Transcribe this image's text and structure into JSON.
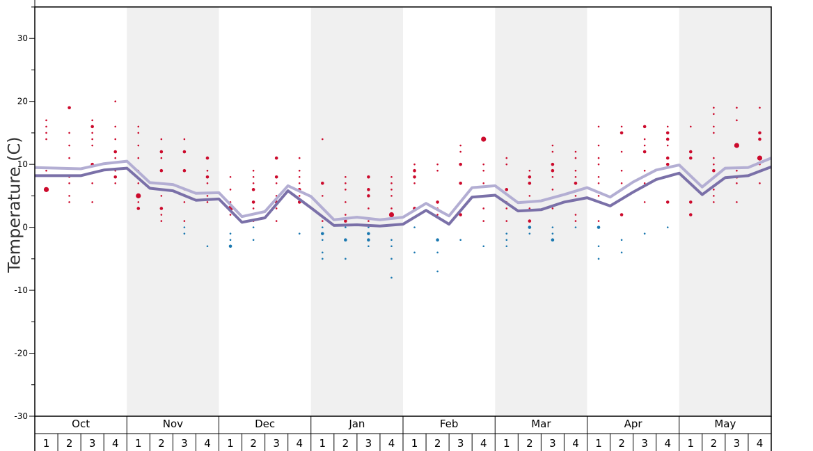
{
  "chart_data": {
    "type": "line",
    "ylabel": "Temperature (C)",
    "ylim": [
      -30,
      35
    ],
    "yticks": [
      30,
      20,
      10,
      0,
      -10,
      -20,
      -30
    ],
    "months": [
      "Oct",
      "Nov",
      "Dec",
      "Jan",
      "Feb",
      "Mar",
      "Apr",
      "May"
    ],
    "weeks": [
      "1",
      "2",
      "3",
      "4"
    ],
    "shaded_months": [
      "Nov",
      "Jan",
      "Mar",
      "May"
    ],
    "x_count": 32,
    "colors": {
      "upper_line": "#b3aed3",
      "lower_line": "#7a70a8",
      "warm_points": "#cc0a2c",
      "cold_points": "#1a78b0",
      "shade": "#f0f0f0"
    },
    "series": [
      {
        "values": [
          9.5,
          9.4,
          9.3,
          10.1,
          10.5,
          7.1,
          6.8,
          5.4,
          5.5,
          1.7,
          2.5,
          6.6,
          4.9,
          1.2,
          1.6,
          1.2,
          1.6,
          3.8,
          1.8,
          6.3,
          6.6,
          3.9,
          4.2,
          5.2,
          6.3,
          4.8,
          7.2,
          9.1,
          9.9,
          6.4,
          9.4,
          9.5,
          11.0
        ]
      },
      {
        "values": [
          8.2,
          8.2,
          8.2,
          9.1,
          9.4,
          6.2,
          5.8,
          4.3,
          4.5,
          0.8,
          1.5,
          5.8,
          3.1,
          0.3,
          0.4,
          0.2,
          0.5,
          2.7,
          0.5,
          4.8,
          5.1,
          2.6,
          2.8,
          4.0,
          4.7,
          3.4,
          5.6,
          7.6,
          8.6,
          5.2,
          7.9,
          8.2,
          9.6
        ]
      }
    ],
    "points": [
      [
        0,
        [
          [
            6,
            3
          ],
          [
            9,
            1
          ],
          [
            14,
            1
          ],
          [
            15,
            1
          ],
          [
            16,
            1
          ],
          [
            17,
            1
          ]
        ]
      ],
      [
        1,
        [
          [
            4,
            1
          ],
          [
            5,
            1
          ],
          [
            7,
            1
          ],
          [
            8,
            1
          ],
          [
            11,
            1
          ],
          [
            13,
            1
          ],
          [
            15,
            1
          ],
          [
            19,
            2
          ]
        ]
      ],
      [
        2,
        [
          [
            4,
            1
          ],
          [
            7,
            1
          ],
          [
            10,
            2
          ],
          [
            13,
            1
          ],
          [
            14,
            1
          ],
          [
            15,
            1
          ],
          [
            16,
            2
          ],
          [
            17,
            1
          ]
        ]
      ],
      [
        3,
        [
          [
            7,
            1
          ],
          [
            8,
            2
          ],
          [
            9,
            1
          ],
          [
            11,
            1
          ],
          [
            12,
            2
          ],
          [
            14,
            1
          ],
          [
            16,
            1
          ],
          [
            20,
            1
          ]
        ]
      ],
      [
        4,
        [
          [
            3,
            2
          ],
          [
            4,
            1
          ],
          [
            5,
            3
          ],
          [
            7,
            1
          ],
          [
            9,
            1
          ],
          [
            11,
            1
          ],
          [
            13,
            1
          ],
          [
            15,
            1
          ],
          [
            16,
            1
          ]
        ]
      ],
      [
        5,
        [
          [
            1,
            1
          ],
          [
            2,
            1
          ],
          [
            3,
            2
          ],
          [
            5,
            1
          ],
          [
            7,
            1
          ],
          [
            9,
            2
          ],
          [
            11,
            1
          ],
          [
            12,
            2
          ],
          [
            14,
            1
          ]
        ]
      ],
      [
        6,
        [
          [
            -1,
            1
          ],
          [
            0,
            1
          ],
          [
            1,
            1
          ],
          [
            4,
            1
          ],
          [
            6,
            1
          ],
          [
            9,
            2
          ],
          [
            12,
            2
          ],
          [
            14,
            1
          ]
        ]
      ],
      [
        7,
        [
          [
            -3,
            1
          ],
          [
            4,
            1
          ],
          [
            5,
            1
          ],
          [
            7,
            1
          ],
          [
            8,
            2
          ],
          [
            9,
            1
          ],
          [
            11,
            2
          ]
        ]
      ],
      [
        8,
        [
          [
            -3,
            2
          ],
          [
            -2,
            1
          ],
          [
            -1,
            1
          ],
          [
            2,
            1
          ],
          [
            3,
            3
          ],
          [
            4,
            1
          ],
          [
            6,
            1
          ],
          [
            8,
            1
          ]
        ]
      ],
      [
        9,
        [
          [
            -2,
            1
          ],
          [
            0,
            1
          ],
          [
            1,
            1
          ],
          [
            3,
            1
          ],
          [
            4,
            2
          ],
          [
            6,
            2
          ],
          [
            7,
            1
          ],
          [
            8,
            1
          ],
          [
            9,
            1
          ]
        ]
      ],
      [
        10,
        [
          [
            1,
            1
          ],
          [
            3,
            1
          ],
          [
            4,
            2
          ],
          [
            5,
            1
          ],
          [
            7,
            1
          ],
          [
            8,
            2
          ],
          [
            11,
            2
          ]
        ]
      ],
      [
        11,
        [
          [
            -1,
            1
          ],
          [
            4,
            2
          ],
          [
            5,
            1
          ],
          [
            6,
            2
          ],
          [
            7,
            1
          ],
          [
            8,
            1
          ],
          [
            9,
            1
          ],
          [
            11,
            1
          ]
        ]
      ],
      [
        12,
        [
          [
            -5,
            1
          ],
          [
            -4,
            1
          ],
          [
            -2,
            1
          ],
          [
            -1,
            2
          ],
          [
            0,
            1
          ],
          [
            1,
            1
          ],
          [
            3,
            1
          ],
          [
            5,
            1
          ],
          [
            7,
            2
          ],
          [
            14,
            1
          ]
        ]
      ],
      [
        13,
        [
          [
            -5,
            1
          ],
          [
            -2,
            2
          ],
          [
            0,
            1
          ],
          [
            1,
            2
          ],
          [
            2,
            1
          ],
          [
            4,
            1
          ],
          [
            6,
            1
          ],
          [
            7,
            1
          ],
          [
            8,
            1
          ]
        ]
      ],
      [
        14,
        [
          [
            -3,
            1
          ],
          [
            -2,
            2
          ],
          [
            -1,
            2
          ],
          [
            0,
            1
          ],
          [
            1,
            1
          ],
          [
            3,
            1
          ],
          [
            5,
            2
          ],
          [
            6,
            2
          ],
          [
            8,
            2
          ]
        ]
      ],
      [
        15,
        [
          [
            -8,
            1
          ],
          [
            -5,
            1
          ],
          [
            -3,
            1
          ],
          [
            -2,
            1
          ],
          [
            2,
            3
          ],
          [
            3,
            1
          ],
          [
            5,
            1
          ],
          [
            6,
            1
          ],
          [
            7,
            1
          ],
          [
            8,
            1
          ]
        ]
      ],
      [
        16,
        [
          [
            -4,
            1
          ],
          [
            0,
            1
          ],
          [
            3,
            2
          ],
          [
            7,
            1
          ],
          [
            8,
            2
          ],
          [
            9,
            2
          ],
          [
            10,
            1
          ]
        ]
      ],
      [
        17,
        [
          [
            -7,
            1
          ],
          [
            -4,
            1
          ],
          [
            -2,
            2
          ],
          [
            2,
            1
          ],
          [
            3,
            1
          ],
          [
            4,
            2
          ],
          [
            9,
            1
          ],
          [
            10,
            1
          ]
        ]
      ],
      [
        18,
        [
          [
            -2,
            1
          ],
          [
            2,
            2
          ],
          [
            7,
            2
          ],
          [
            10,
            2
          ],
          [
            12,
            1
          ],
          [
            13,
            1
          ]
        ]
      ],
      [
        19,
        [
          [
            -3,
            1
          ],
          [
            1,
            1
          ],
          [
            3,
            1
          ],
          [
            5,
            1
          ],
          [
            7,
            1
          ],
          [
            9,
            1
          ],
          [
            10,
            1
          ],
          [
            14,
            3
          ]
        ]
      ],
      [
        20,
        [
          [
            -3,
            1
          ],
          [
            -2,
            1
          ],
          [
            -1,
            1
          ],
          [
            1,
            1
          ],
          [
            3,
            1
          ],
          [
            4,
            1
          ],
          [
            6,
            2
          ],
          [
            10,
            1
          ],
          [
            11,
            1
          ]
        ]
      ],
      [
        21,
        [
          [
            -1,
            1
          ],
          [
            0,
            2
          ],
          [
            1,
            2
          ],
          [
            3,
            1
          ],
          [
            5,
            1
          ],
          [
            7,
            2
          ],
          [
            8,
            2
          ],
          [
            9,
            1
          ]
        ]
      ],
      [
        22,
        [
          [
            -2,
            2
          ],
          [
            -1,
            1
          ],
          [
            0,
            1
          ],
          [
            3,
            1
          ],
          [
            6,
            1
          ],
          [
            8,
            1
          ],
          [
            9,
            2
          ],
          [
            10,
            2
          ],
          [
            12,
            1
          ],
          [
            13,
            1
          ]
        ]
      ],
      [
        23,
        [
          [
            0,
            1
          ],
          [
            1,
            1
          ],
          [
            2,
            1
          ],
          [
            5,
            1
          ],
          [
            7,
            2
          ],
          [
            8,
            1
          ],
          [
            9,
            1
          ],
          [
            11,
            1
          ],
          [
            12,
            1
          ]
        ]
      ],
      [
        24,
        [
          [
            -5,
            1
          ],
          [
            -3,
            1
          ],
          [
            0,
            2
          ],
          [
            1,
            1
          ],
          [
            5,
            1
          ],
          [
            7,
            1
          ],
          [
            8,
            1
          ],
          [
            10,
            1
          ],
          [
            11,
            1
          ],
          [
            13,
            1
          ],
          [
            16,
            1
          ]
        ]
      ],
      [
        25,
        [
          [
            -4,
            1
          ],
          [
            -2,
            1
          ],
          [
            2,
            2
          ],
          [
            7,
            1
          ],
          [
            9,
            1
          ],
          [
            12,
            1
          ],
          [
            15,
            2
          ],
          [
            16,
            1
          ]
        ]
      ],
      [
        26,
        [
          [
            -1,
            1
          ],
          [
            4,
            1
          ],
          [
            7,
            1
          ],
          [
            9,
            1
          ],
          [
            12,
            2
          ],
          [
            13,
            1
          ],
          [
            14,
            1
          ],
          [
            16,
            2
          ]
        ]
      ],
      [
        27,
        [
          [
            0,
            1
          ],
          [
            4,
            2
          ],
          [
            8,
            1
          ],
          [
            10,
            2
          ],
          [
            11,
            2
          ],
          [
            13,
            1
          ],
          [
            14,
            2
          ],
          [
            15,
            2
          ],
          [
            16,
            1
          ]
        ]
      ],
      [
        28,
        [
          [
            2,
            2
          ],
          [
            4,
            2
          ],
          [
            11,
            2
          ],
          [
            12,
            2
          ],
          [
            16,
            1
          ]
        ]
      ],
      [
        29,
        [
          [
            4,
            1
          ],
          [
            5,
            1
          ],
          [
            6,
            1
          ],
          [
            8,
            1
          ],
          [
            9,
            2
          ],
          [
            10,
            1
          ],
          [
            11,
            1
          ],
          [
            15,
            1
          ],
          [
            16,
            1
          ],
          [
            18,
            1
          ],
          [
            19,
            1
          ]
        ]
      ],
      [
        30,
        [
          [
            4,
            1
          ],
          [
            7,
            1
          ],
          [
            8,
            2
          ],
          [
            9,
            1
          ],
          [
            13,
            3
          ],
          [
            17,
            1
          ],
          [
            19,
            1
          ]
        ]
      ],
      [
        31,
        [
          [
            7,
            1
          ],
          [
            9,
            1
          ],
          [
            10,
            1
          ],
          [
            11,
            3
          ],
          [
            14,
            2
          ],
          [
            15,
            2
          ],
          [
            19,
            1
          ]
        ]
      ]
    ]
  }
}
